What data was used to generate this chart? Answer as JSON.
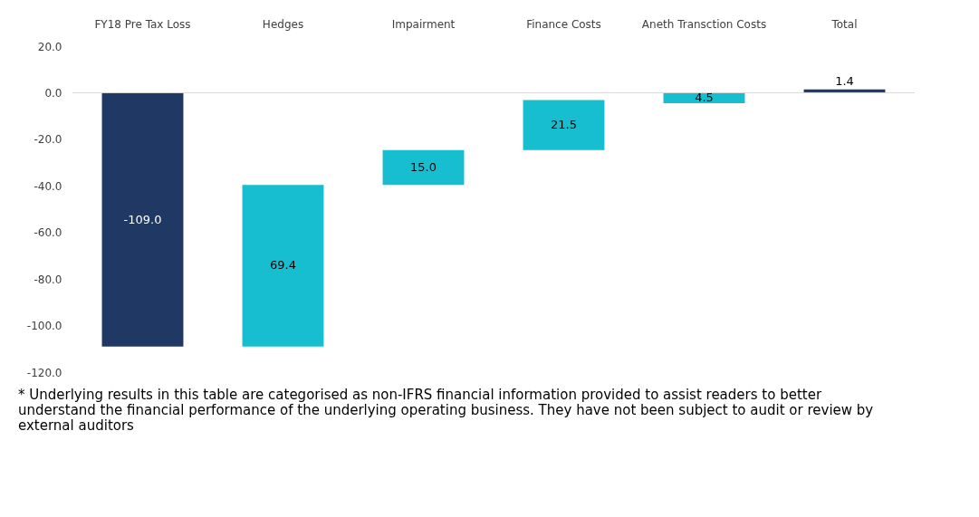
{
  "chart_data": {
    "type": "bar",
    "categories": [
      "FY18 Pre Tax Loss",
      "Hedges",
      "Impairment",
      "Finance Costs",
      "Aneth Transction Costs",
      "Total"
    ],
    "values": [
      -109.0,
      69.4,
      15.0,
      21.5,
      4.5,
      1.4
    ],
    "base": [
      0,
      -109.0,
      -39.6,
      -24.6,
      -4.5,
      0
    ],
    "colors": [
      "#203864",
      "#17becf",
      "#17becf",
      "#17becf",
      "#17becf",
      "#203864"
    ],
    "value_labels": [
      "-109.0",
      "69.4",
      "15.0",
      "21.5",
      "4.5",
      "1.4"
    ],
    "ylim": [
      -120,
      20
    ],
    "yticks": [
      {
        "value": -120,
        "label": "-120.0"
      },
      {
        "value": -100,
        "label": "-100.0"
      },
      {
        "value": -80,
        "label": "-80.0"
      },
      {
        "value": -60,
        "label": "-60.0"
      },
      {
        "value": -40,
        "label": "-40.0"
      },
      {
        "value": -20,
        "label": "-20.0"
      },
      {
        "value": 0,
        "label": "0.0"
      },
      {
        "value": 20,
        "label": "20.0"
      }
    ],
    "ref_lines": [
      {
        "axis": "y",
        "value": 0,
        "color": "#d9d9d9"
      }
    ],
    "grid": false,
    "annotations": [
      "* Underlying results in this table are categorised as non-IFRS financial information provided to assist readers to better understand the financial performance of the underlying operating business. They have not been subject to audit or review by external auditors"
    ]
  }
}
